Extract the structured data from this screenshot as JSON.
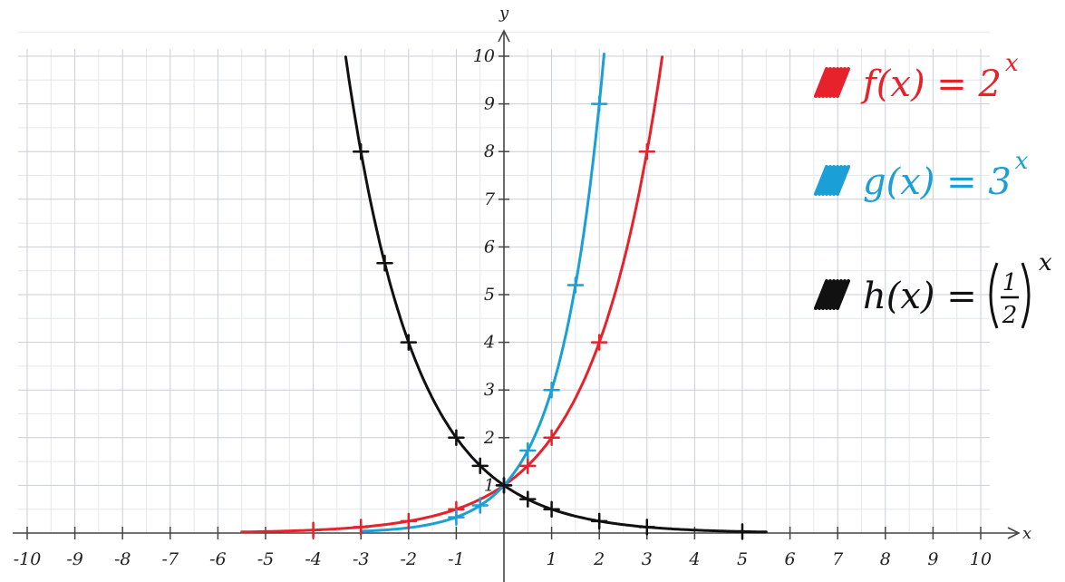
{
  "chart_data": {
    "type": "line",
    "title": "",
    "xlabel": "x",
    "ylabel": "y",
    "xlim": [
      -10,
      10
    ],
    "ylim": [
      0,
      10
    ],
    "grid": true,
    "legend_position": "top-right",
    "x_tick_labels": [
      "-10",
      "-9",
      "-8",
      "-7",
      "-6",
      "-5",
      "-4",
      "-3",
      "-2",
      "-1",
      "1",
      "2",
      "3",
      "4",
      "5",
      "6",
      "7",
      "8",
      "9",
      "10"
    ],
    "y_tick_labels": [
      "1",
      "2",
      "3",
      "4",
      "5",
      "6",
      "7",
      "8",
      "9",
      "10"
    ],
    "series": [
      {
        "name": "f(x) = 2^x",
        "color": "#e8222a",
        "label": {
          "lhs": "f(x) = 2",
          "exp": "x"
        },
        "domain": [
          -5.5,
          3.32
        ],
        "base": 2,
        "marked_points": [
          {
            "x": -4,
            "y": 0.0625
          },
          {
            "x": -3,
            "y": 0.125
          },
          {
            "x": -2,
            "y": 0.25
          },
          {
            "x": -1,
            "y": 0.5
          },
          {
            "x": 0,
            "y": 1
          },
          {
            "x": 0.5,
            "y": 1.41
          },
          {
            "x": 1,
            "y": 2
          },
          {
            "x": 2,
            "y": 4
          },
          {
            "x": 3,
            "y": 8
          }
        ]
      },
      {
        "name": "g(x) = 3^x",
        "color": "#1a9fd6",
        "label": {
          "lhs": "g(x) = 3",
          "exp": "x"
        },
        "domain": [
          -3,
          2.1
        ],
        "base": 3,
        "marked_points": [
          {
            "x": -1,
            "y": 0.33
          },
          {
            "x": -0.5,
            "y": 0.58
          },
          {
            "x": 0,
            "y": 1
          },
          {
            "x": 0.5,
            "y": 1.73
          },
          {
            "x": 1,
            "y": 3
          },
          {
            "x": 1.5,
            "y": 5.2
          },
          {
            "x": 2,
            "y": 9
          }
        ]
      },
      {
        "name": "h(x) = (1/2)^x",
        "color": "#111111",
        "label": {
          "lhs": "h(x) = ",
          "frac_num": "1",
          "frac_den": "2",
          "exp": "x"
        },
        "domain": [
          -3.32,
          5.5
        ],
        "base": 0.5,
        "marked_points": [
          {
            "x": -3,
            "y": 8
          },
          {
            "x": -2.5,
            "y": 5.66
          },
          {
            "x": -2,
            "y": 4
          },
          {
            "x": -1,
            "y": 2
          },
          {
            "x": -0.5,
            "y": 1.41
          },
          {
            "x": 0,
            "y": 1
          },
          {
            "x": 0.5,
            "y": 0.71
          },
          {
            "x": 1,
            "y": 0.5
          },
          {
            "x": 2,
            "y": 0.25
          },
          {
            "x": 3,
            "y": 0.125
          },
          {
            "x": 5,
            "y": 0.03
          }
        ]
      }
    ]
  }
}
